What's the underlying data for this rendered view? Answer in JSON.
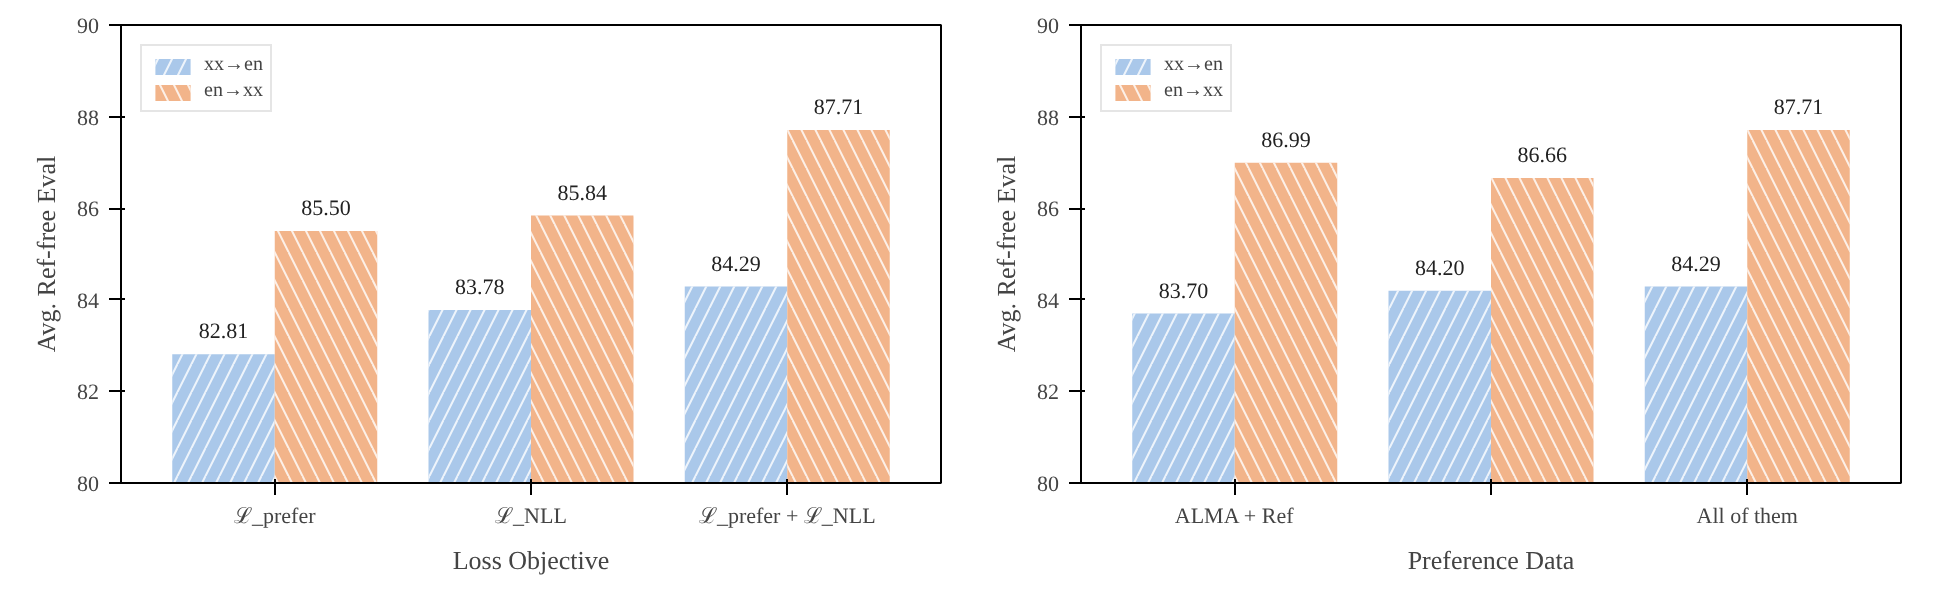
{
  "chart_data": [
    {
      "type": "bar",
      "xlabel": "Loss Objective",
      "ylabel": "Avg. Ref-free Eval",
      "categories": [
        "ℒ_prefer",
        "ℒ_NLL",
        "ℒ_prefer + ℒ_NLL"
      ],
      "series": [
        {
          "name": "xx→en",
          "color": "#aac8ea",
          "values": [
            82.81,
            83.78,
            84.29
          ],
          "value_labels": [
            "82.81",
            "83.78",
            "84.29"
          ]
        },
        {
          "name": "en→xx",
          "color": "#f2b48a",
          "values": [
            85.5,
            85.84,
            87.71
          ],
          "value_labels": [
            "85.50",
            "85.84",
            "87.71"
          ]
        }
      ],
      "ylim": [
        80,
        90
      ],
      "yticks": [
        80,
        82,
        84,
        86,
        88,
        90
      ],
      "legend": "top left",
      "grid": false
    },
    {
      "type": "bar",
      "xlabel": "Preference Data",
      "ylabel": "Avg. Ref-free Eval",
      "categories": [
        "ALMA + Ref",
        null,
        "All of them"
      ],
      "series": [
        {
          "name": "xx→en",
          "color": "#aac8ea",
          "values": [
            83.7,
            84.2,
            84.29
          ],
          "value_labels": [
            "83.70",
            "84.20",
            "84.29"
          ]
        },
        {
          "name": "en→xx",
          "color": "#f2b48a",
          "values": [
            86.99,
            86.66,
            87.71
          ],
          "value_labels": [
            "86.99",
            "86.66",
            "87.71"
          ]
        }
      ],
      "ylim": [
        80,
        90
      ],
      "yticks": [
        80,
        82,
        84,
        86,
        88,
        90
      ],
      "legend": "top left",
      "grid": false
    }
  ]
}
